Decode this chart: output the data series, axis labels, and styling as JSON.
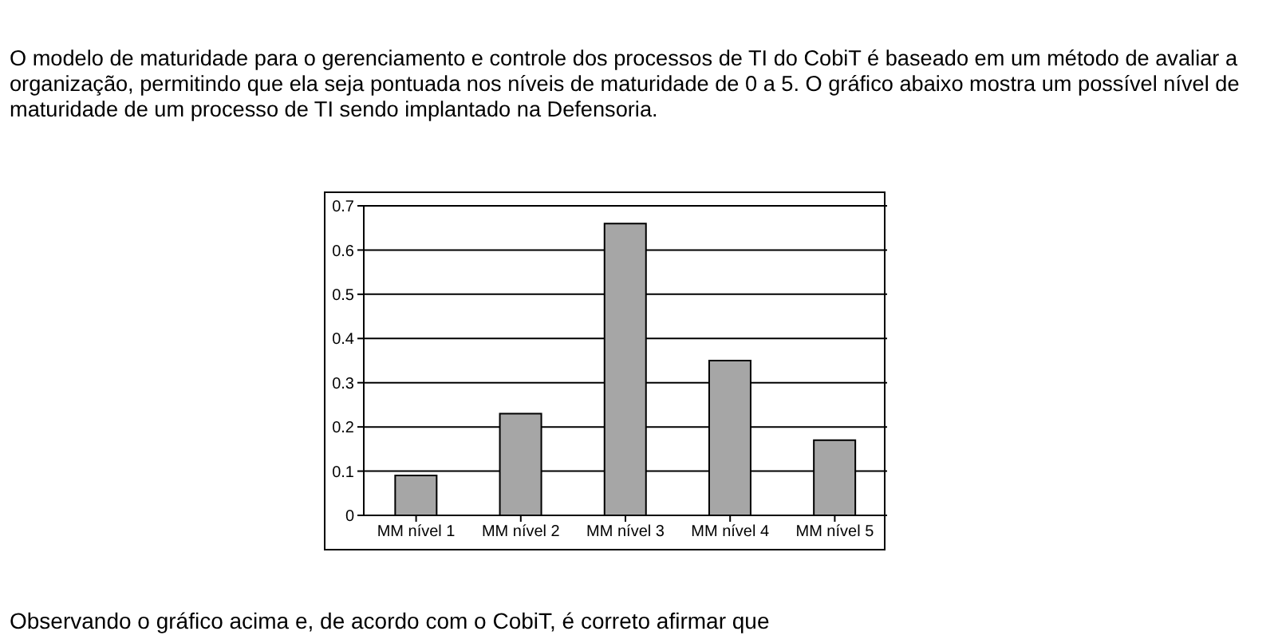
{
  "chart_data": {
    "type": "bar",
    "title": "O modelo de maturidade para o gerenciamento e controle dos processos de TI do CobiT é baseado em um método de avaliar a organização, permitindo que ela seja pontuada nos níveis de maturidade de 0 a 5. O gráfico abaixo mostra um possível nível de maturidade de um processo de TI sendo implantado na Defensoria.",
    "categories": [
      "MM nível 1",
      "MM nível 2",
      "MM nível 3",
      "MM nível 4",
      "MM nível 5"
    ],
    "values": [
      0.09,
      0.23,
      0.66,
      0.35,
      0.17
    ],
    "color": "#a6a6a6",
    "ylim": [
      0,
      0.7
    ],
    "yticks": [
      0,
      0.1,
      0.2,
      0.3,
      0.4,
      0.5,
      0.6,
      0.7
    ],
    "grid": "y",
    "legend": false,
    "annotations": [
      "Observando o gráfico acima e, de acordo com o CobiT, é correto afirmar que"
    ]
  }
}
